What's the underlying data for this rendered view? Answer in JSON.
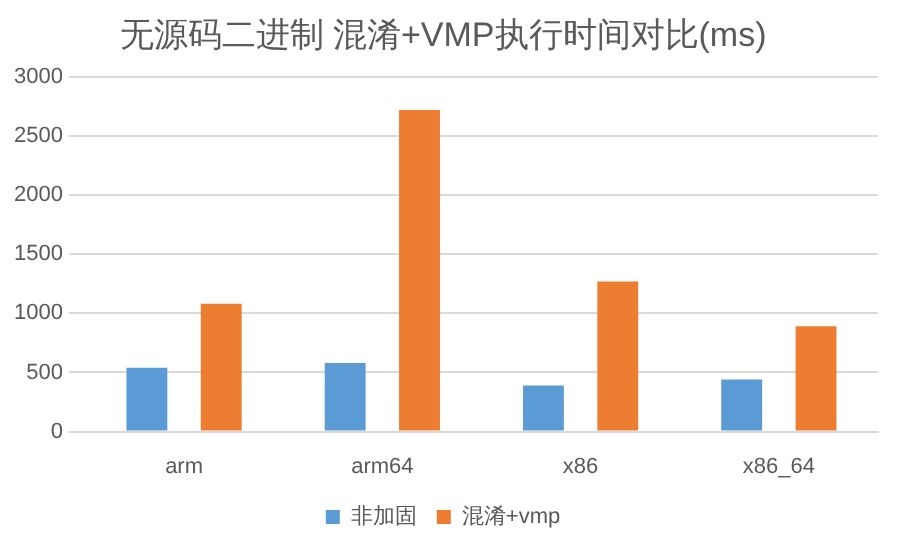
{
  "chart_data": {
    "type": "bar",
    "title": "无源码二进制 混淆+VMP执行时间对比(ms)",
    "categories": [
      "arm",
      "arm64",
      "x86",
      "x86_64"
    ],
    "series": [
      {
        "name": "非加固",
        "color": "#5b9bd5",
        "values": [
          540,
          580,
          390,
          440
        ]
      },
      {
        "name": "混淆+vmp",
        "color": "#ed7d31",
        "values": [
          1080,
          2720,
          1270,
          890
        ]
      }
    ],
    "ylim": [
      0,
      3000
    ],
    "yticks": [
      0,
      500,
      1000,
      1500,
      2000,
      2500,
      3000
    ],
    "grid": "y",
    "legend": "bottom"
  }
}
